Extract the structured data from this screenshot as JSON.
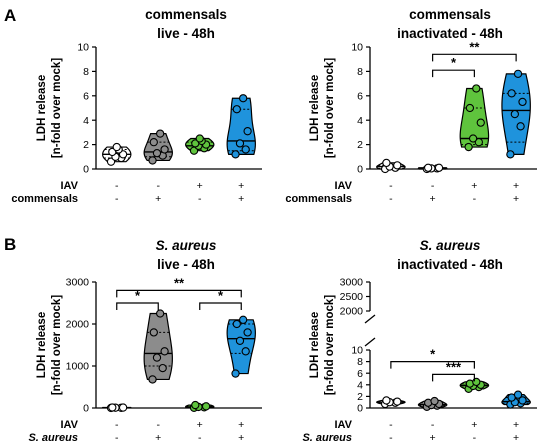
{
  "figure": {
    "panels": [
      "A",
      "B"
    ]
  },
  "chart_data": [
    {
      "id": "A-live",
      "panel": "A",
      "type": "violin",
      "title": [
        "commensals",
        "live - 48h"
      ],
      "title_italic_first": false,
      "ylabel": [
        "LDH release",
        "[n-fold over mock]"
      ],
      "ylim": [
        0,
        10
      ],
      "yticks": [
        "0",
        "2",
        "4",
        "6",
        "8",
        "10"
      ],
      "ytick_values": [
        0,
        2,
        4,
        6,
        8,
        10
      ],
      "row_labels": [
        "IAV",
        "commensals"
      ],
      "row_italic_second": false,
      "groups": [
        {
          "IAV": "-",
          "agent": "-",
          "color": "#ffffff",
          "points": [
            0.6,
            0.9,
            1.0,
            1.2,
            1.4,
            1.6,
            1.8
          ],
          "median": 1.2,
          "q1": 0.9,
          "q3": 1.6
        },
        {
          "IAV": "-",
          "agent": "+",
          "color": "#8c8c8c",
          "points": [
            0.7,
            1.1,
            1.3,
            1.6,
            2.2,
            2.9
          ],
          "median": 1.4,
          "q1": 1.0,
          "q3": 2.2
        },
        {
          "IAV": "+",
          "agent": "-",
          "color": "#5fc43d",
          "points": [
            1.5,
            1.7,
            1.9,
            2.0,
            2.1,
            2.3,
            2.5
          ],
          "median": 1.9,
          "q1": 1.6,
          "q3": 2.2
        },
        {
          "IAV": "+",
          "agent": "+",
          "color": "#1f93dc",
          "points": [
            1.2,
            1.6,
            2.1,
            3.1,
            4.9,
            5.8
          ],
          "median": 2.3,
          "q1": 1.5,
          "q3": 4.9
        }
      ],
      "significance": []
    },
    {
      "id": "A-inact",
      "panel": "",
      "type": "violin",
      "title": [
        "commensals",
        "inactivated - 48h"
      ],
      "title_italic_first": false,
      "ylabel": [
        "LDH release",
        "[n-fold over mock]"
      ],
      "ylim": [
        0,
        10
      ],
      "yticks": [
        "0",
        "2",
        "4",
        "6",
        "8",
        "10"
      ],
      "ytick_values": [
        0,
        2,
        4,
        6,
        8,
        10
      ],
      "row_labels": [
        "IAV",
        "commensals"
      ],
      "row_italic_second": false,
      "groups": [
        {
          "IAV": "-",
          "agent": "-",
          "color": "#ffffff",
          "points": [
            0.0,
            0.1,
            0.2,
            0.3,
            0.5
          ],
          "median": 0.2,
          "q1": 0.05,
          "q3": 0.3
        },
        {
          "IAV": "-",
          "agent": "+",
          "color": "#ffffff",
          "points": [
            0.0,
            0.05,
            0.05,
            0.1,
            0.1
          ],
          "median": 0.05,
          "q1": 0.02,
          "q3": 0.08
        },
        {
          "IAV": "+",
          "agent": "-",
          "color": "#5fc43d",
          "points": [
            1.8,
            2.2,
            2.5,
            3.8,
            5.0,
            6.6
          ],
          "median": 2.5,
          "q1": 2.0,
          "q3": 5.0
        },
        {
          "IAV": "+",
          "agent": "+",
          "color": "#1f93dc",
          "points": [
            1.2,
            3.5,
            4.5,
            5.5,
            6.2,
            7.8
          ],
          "median": 4.8,
          "q1": 2.2,
          "q3": 6.2
        }
      ],
      "significance": [
        {
          "from": 1,
          "to": 2,
          "label": "*",
          "y": 8.1
        },
        {
          "from": 1,
          "to": 3,
          "label": "**",
          "y": 9.4
        }
      ]
    },
    {
      "id": "B-live",
      "panel": "B",
      "type": "violin",
      "title": [
        "S. aureus",
        "live - 48h"
      ],
      "title_italic_first": true,
      "ylabel": [
        "LDH release",
        "[n-fold over mock]"
      ],
      "ylim": [
        0,
        3000
      ],
      "yticks": [
        "0",
        "1000",
        "2000",
        "3000"
      ],
      "ytick_values": [
        0,
        1000,
        2000,
        3000
      ],
      "row_labels": [
        "IAV",
        "S. aureus"
      ],
      "row_italic_second": true,
      "groups": [
        {
          "IAV": "-",
          "agent": "-",
          "color": "#ffffff",
          "points": [
            2,
            5,
            8,
            10,
            12
          ],
          "median": 8,
          "q1": 4,
          "q3": 11
        },
        {
          "IAV": "-",
          "agent": "+",
          "color": "#8c8c8c",
          "points": [
            680,
            950,
            1200,
            1350,
            1800,
            2250
          ],
          "median": 1300,
          "q1": 1000,
          "q3": 1800
        },
        {
          "IAV": "+",
          "agent": "-",
          "color": "#5fc43d",
          "points": [
            5,
            15,
            25,
            40,
            70
          ],
          "median": 25,
          "q1": 10,
          "q3": 45
        },
        {
          "IAV": "+",
          "agent": "+",
          "color": "#1f93dc",
          "points": [
            820,
            1350,
            1600,
            1800,
            2000,
            2100
          ],
          "median": 1650,
          "q1": 1300,
          "q3": 2000
        }
      ],
      "significance": [
        {
          "from": 0,
          "to": 1,
          "label": "*",
          "y": 2500
        },
        {
          "from": 2,
          "to": 3,
          "label": "*",
          "y": 2500
        },
        {
          "from": 0,
          "to": 3,
          "label": "**",
          "y": 2800
        }
      ]
    },
    {
      "id": "B-inact",
      "panel": "",
      "type": "violin",
      "title": [
        "S. aureus",
        "inactivated - 48h"
      ],
      "title_italic_first": true,
      "ylabel": [
        "LDH release",
        "[n-fold over mock]"
      ],
      "ylim": [
        0,
        3000
      ],
      "axis_break": {
        "lower": [
          0,
          10
        ],
        "upper": [
          2000,
          3000
        ]
      },
      "yticks": [
        "0",
        "2",
        "4",
        "6",
        "8",
        "10",
        "2000",
        "2500",
        "3000"
      ],
      "ytick_values": [
        0,
        2,
        4,
        6,
        8,
        10,
        2000,
        2500,
        3000
      ],
      "row_labels": [
        "IAV",
        "S. aureus"
      ],
      "row_italic_second": true,
      "groups": [
        {
          "IAV": "-",
          "agent": "-",
          "color": "#ffffff",
          "points": [
            0.7,
            0.9,
            1.0,
            1.1,
            1.3
          ],
          "median": 1.0,
          "q1": 0.85,
          "q3": 1.15
        },
        {
          "IAV": "-",
          "agent": "+",
          "color": "#8c8c8c",
          "points": [
            0.2,
            0.4,
            0.5,
            0.7,
            0.9,
            1.2
          ],
          "median": 0.6,
          "q1": 0.4,
          "q3": 0.9
        },
        {
          "IAV": "+",
          "agent": "-",
          "color": "#5fc43d",
          "points": [
            3.3,
            3.6,
            3.8,
            4.0,
            4.2,
            4.5
          ],
          "median": 3.9,
          "q1": 3.6,
          "q3": 4.2
        },
        {
          "IAV": "+",
          "agent": "+",
          "color": "#1f93dc",
          "points": [
            0.6,
            0.8,
            1.0,
            1.3,
            1.8,
            2.3
          ],
          "median": 1.1,
          "q1": 0.8,
          "q3": 1.8
        }
      ],
      "significance": [
        {
          "from": 0,
          "to": 2,
          "label": "*",
          "y": 8.0
        },
        {
          "from": 1,
          "to": 2,
          "label": "***",
          "y": 5.8
        }
      ]
    }
  ]
}
